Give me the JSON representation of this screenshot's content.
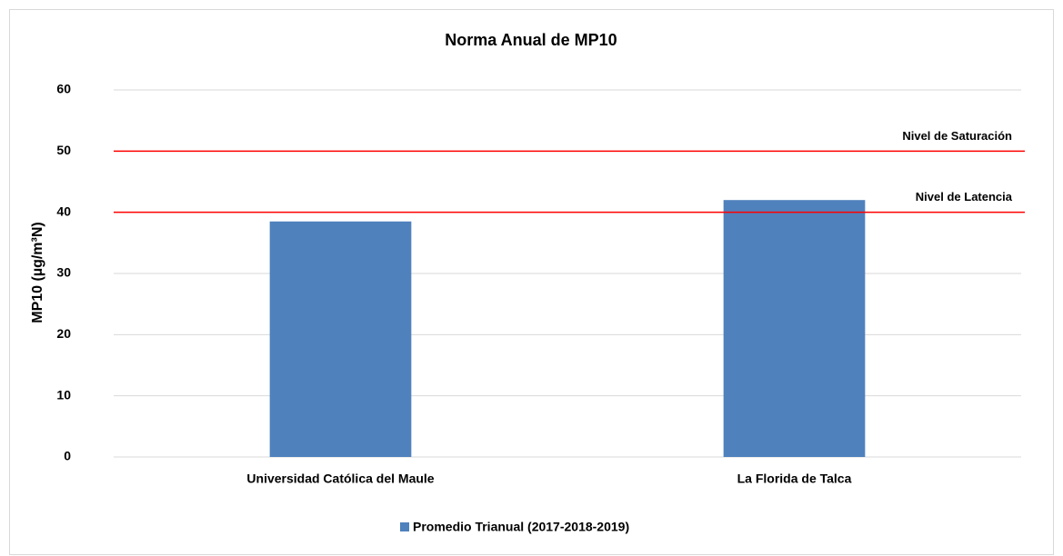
{
  "chart_data": {
    "type": "bar",
    "title": "Norma Anual de MP10",
    "ylabel": "MP10 (µg/m³N)",
    "categories": [
      "Universidad Católica del Maule",
      "La Florida de Talca"
    ],
    "series": [
      {
        "name": "Promedio Trianual (2017-2018-2019)",
        "color": "#4f81bd",
        "values": [
          38.5,
          42
        ]
      }
    ],
    "ylim": [
      0,
      60
    ],
    "yticks": [
      0,
      10,
      20,
      30,
      40,
      50,
      60
    ],
    "grid": true,
    "reference_lines": [
      {
        "label": "Nivel de Saturación",
        "value": 50,
        "color": "#ff0000"
      },
      {
        "label": "Nivel de Latencia",
        "value": 40,
        "color": "#ff0000"
      }
    ],
    "legend": "bottom"
  }
}
